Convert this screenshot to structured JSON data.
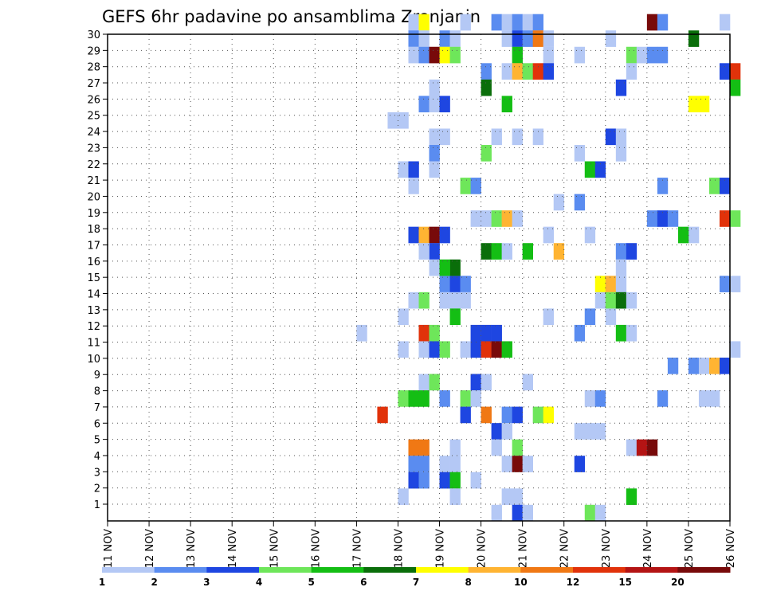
{
  "chart_data": {
    "type": "heatmap",
    "title": "GEFS 6hr padavine po ansamblima Zrenjanin",
    "xlabel": "",
    "ylabel": "",
    "y_ticks": [
      "1",
      "2",
      "3",
      "4",
      "5",
      "6",
      "7",
      "8",
      "9",
      "10",
      "11",
      "12",
      "13",
      "14",
      "15",
      "16",
      "17",
      "18",
      "19",
      "20",
      "21",
      "22",
      "23",
      "24",
      "25",
      "26",
      "27",
      "28",
      "29",
      "30"
    ],
    "x_ticks": [
      "11 NOV",
      "12 NOV",
      "13 NOV",
      "14 NOV",
      "15 NOV",
      "16 NOV",
      "17 NOV",
      "18 NOV",
      "19 NOV",
      "20 NOV",
      "21 NOV",
      "22 NOV",
      "23 NOV",
      "24 NOV",
      "25 NOV",
      "26 NOV"
    ],
    "x_range_days": [
      11,
      26
    ],
    "y_range": [
      0,
      30
    ],
    "step_hours": 6,
    "grid": true,
    "legend": {
      "placement": "bottom",
      "labels": [
        "1",
        "2",
        "3",
        "4",
        "5",
        "6",
        "7",
        "8",
        "10",
        "12",
        "15",
        "20"
      ],
      "colors": [
        "#b4c8f5",
        "#5a8cf0",
        "#1e46e1",
        "#6ee65a",
        "#14be14",
        "#0a6e0a",
        "#ffff00",
        "#ffb432",
        "#f07814",
        "#e1320a",
        "#b41414",
        "#780a0a"
      ]
    },
    "cells_note": "each cell = [day, member, color_level]; day = fractional November date of 6h period start",
    "cells": [
      [
        18.25,
        30,
        1
      ],
      [
        18.5,
        30,
        7
      ],
      [
        19.5,
        30,
        1
      ],
      [
        20.25,
        30,
        2
      ],
      [
        20.5,
        30,
        1
      ],
      [
        20.75,
        30,
        2
      ],
      [
        21,
        30,
        1
      ],
      [
        21.25,
        30,
        2
      ],
      [
        24,
        30,
        12
      ],
      [
        24.25,
        30,
        2
      ],
      [
        25.75,
        30,
        1
      ],
      [
        18.25,
        29,
        2
      ],
      [
        18.5,
        29,
        1
      ],
      [
        19,
        29,
        2
      ],
      [
        19.25,
        29,
        1
      ],
      [
        20.5,
        29,
        1
      ],
      [
        20.75,
        29,
        3
      ],
      [
        21,
        29,
        2
      ],
      [
        21.25,
        29,
        9
      ],
      [
        21.5,
        29,
        1
      ],
      [
        23,
        29,
        1
      ],
      [
        25,
        29,
        6
      ],
      [
        18.25,
        28,
        1
      ],
      [
        18.5,
        28,
        2
      ],
      [
        18.75,
        28,
        12
      ],
      [
        19,
        28,
        7
      ],
      [
        19.25,
        28,
        4
      ],
      [
        20.75,
        28,
        5
      ],
      [
        21.5,
        28,
        1
      ],
      [
        22.25,
        28,
        1
      ],
      [
        23.5,
        28,
        4
      ],
      [
        23.75,
        28,
        1
      ],
      [
        24,
        28,
        2
      ],
      [
        24.25,
        28,
        2
      ],
      [
        20,
        27,
        2
      ],
      [
        20.5,
        27,
        1
      ],
      [
        20.75,
        27,
        8
      ],
      [
        21,
        27,
        4
      ],
      [
        21.25,
        27,
        10
      ],
      [
        21.5,
        27,
        3
      ],
      [
        23.5,
        27,
        1
      ],
      [
        25.75,
        27,
        3
      ],
      [
        26,
        27,
        10
      ],
      [
        18.75,
        26,
        1
      ],
      [
        20,
        26,
        6
      ],
      [
        23.25,
        26,
        3
      ],
      [
        26,
        26,
        5
      ],
      [
        18.5,
        25,
        2
      ],
      [
        18.75,
        25,
        1
      ],
      [
        19,
        25,
        3
      ],
      [
        20.5,
        25,
        5
      ],
      [
        25,
        25,
        7
      ],
      [
        25.25,
        25,
        7
      ],
      [
        17.75,
        24,
        1
      ],
      [
        18,
        24,
        1
      ],
      [
        18.75,
        23,
        1
      ],
      [
        19,
        23,
        1
      ],
      [
        20.25,
        23,
        1
      ],
      [
        20.75,
        23,
        1
      ],
      [
        21.25,
        23,
        1
      ],
      [
        23,
        23,
        3
      ],
      [
        23.25,
        23,
        1
      ],
      [
        18.75,
        22,
        2
      ],
      [
        20,
        22,
        4
      ],
      [
        22.25,
        22,
        1
      ],
      [
        23.25,
        22,
        1
      ],
      [
        18,
        21,
        1
      ],
      [
        18.25,
        21,
        3
      ],
      [
        18.75,
        21,
        1
      ],
      [
        22.5,
        21,
        5
      ],
      [
        22.75,
        21,
        3
      ],
      [
        18.25,
        20,
        1
      ],
      [
        19.5,
        20,
        4
      ],
      [
        19.75,
        20,
        2
      ],
      [
        24.25,
        20,
        2
      ],
      [
        25.5,
        20,
        4
      ],
      [
        25.75,
        20,
        3
      ],
      [
        21.75,
        19,
        1
      ],
      [
        22.25,
        19,
        2
      ],
      [
        19.75,
        18,
        1
      ],
      [
        20,
        18,
        1
      ],
      [
        20.25,
        18,
        4
      ],
      [
        20.5,
        18,
        8
      ],
      [
        20.75,
        18,
        1
      ],
      [
        24,
        18,
        2
      ],
      [
        24.25,
        18,
        3
      ],
      [
        24.5,
        18,
        2
      ],
      [
        25.75,
        18,
        10
      ],
      [
        26,
        18,
        4
      ],
      [
        18.25,
        17,
        3
      ],
      [
        18.5,
        17,
        8
      ],
      [
        18.75,
        17,
        12
      ],
      [
        19,
        17,
        3
      ],
      [
        21.5,
        17,
        1
      ],
      [
        22.5,
        17,
        1
      ],
      [
        25,
        17,
        1
      ],
      [
        24.75,
        17,
        5
      ],
      [
        18.75,
        16,
        3
      ],
      [
        18.5,
        16,
        1
      ],
      [
        20,
        16,
        6
      ],
      [
        20.25,
        16,
        5
      ],
      [
        20.5,
        16,
        1
      ],
      [
        21,
        16,
        5
      ],
      [
        21.75,
        16,
        8
      ],
      [
        23.25,
        16,
        2
      ],
      [
        23.5,
        16,
        3
      ],
      [
        19,
        14,
        2
      ],
      [
        19.25,
        14,
        3
      ],
      [
        19.5,
        14,
        2
      ],
      [
        22.75,
        14,
        7
      ],
      [
        23,
        14,
        8
      ],
      [
        23.25,
        14,
        1
      ],
      [
        25.75,
        14,
        2
      ],
      [
        26,
        14,
        1
      ],
      [
        18.75,
        15,
        1
      ],
      [
        19.25,
        15,
        6
      ],
      [
        19,
        15,
        5
      ],
      [
        23.25,
        15,
        1
      ],
      [
        18.25,
        13,
        1
      ],
      [
        18.5,
        13,
        4
      ],
      [
        19,
        13,
        1
      ],
      [
        19.25,
        13,
        1
      ],
      [
        19.5,
        13,
        1
      ],
      [
        22.75,
        13,
        1
      ],
      [
        23,
        13,
        4
      ],
      [
        23.25,
        13,
        6
      ],
      [
        23.5,
        13,
        1
      ],
      [
        18,
        12,
        1
      ],
      [
        19.25,
        12,
        5
      ],
      [
        21.5,
        12,
        1
      ],
      [
        22.5,
        12,
        2
      ],
      [
        23,
        12,
        1
      ],
      [
        17,
        11,
        1
      ],
      [
        18.5,
        11,
        10
      ],
      [
        18.75,
        11,
        4
      ],
      [
        19.75,
        11,
        3
      ],
      [
        20,
        11,
        3
      ],
      [
        20.25,
        11,
        3
      ],
      [
        22.25,
        11,
        2
      ],
      [
        23.25,
        11,
        5
      ],
      [
        23.5,
        11,
        1
      ],
      [
        18,
        10,
        1
      ],
      [
        18.5,
        10,
        1
      ],
      [
        18.75,
        10,
        3
      ],
      [
        19,
        10,
        4
      ],
      [
        19.5,
        10,
        1
      ],
      [
        19.75,
        10,
        3
      ],
      [
        20,
        10,
        10
      ],
      [
        20.25,
        10,
        12
      ],
      [
        20.5,
        10,
        5
      ],
      [
        26,
        10,
        1
      ],
      [
        24.5,
        9,
        2
      ],
      [
        25,
        9,
        2
      ],
      [
        25.25,
        9,
        1
      ],
      [
        25.5,
        9,
        8
      ],
      [
        25.75,
        9,
        3
      ],
      [
        18.5,
        8,
        1
      ],
      [
        18.75,
        8,
        4
      ],
      [
        19.75,
        8,
        3
      ],
      [
        20,
        8,
        1
      ],
      [
        21,
        8,
        1
      ],
      [
        18,
        7,
        4
      ],
      [
        18.25,
        7,
        5
      ],
      [
        18.5,
        7,
        5
      ],
      [
        19,
        7,
        2
      ],
      [
        19.5,
        7,
        4
      ],
      [
        19.75,
        7,
        1
      ],
      [
        22.5,
        7,
        1
      ],
      [
        22.75,
        7,
        2
      ],
      [
        24.25,
        7,
        2
      ],
      [
        25.25,
        7,
        1
      ],
      [
        25.5,
        7,
        1
      ],
      [
        17.5,
        6,
        10
      ],
      [
        19.5,
        6,
        3
      ],
      [
        20,
        6,
        9
      ],
      [
        20.5,
        6,
        2
      ],
      [
        20.75,
        6,
        3
      ],
      [
        21.25,
        6,
        4
      ],
      [
        21.5,
        6,
        7
      ],
      [
        20.25,
        5,
        3
      ],
      [
        20.5,
        5,
        1
      ],
      [
        22.25,
        5,
        1
      ],
      [
        22.5,
        5,
        1
      ],
      [
        22.75,
        5,
        1
      ],
      [
        18.25,
        4,
        9
      ],
      [
        18.5,
        4,
        9
      ],
      [
        19.25,
        4,
        1
      ],
      [
        20.25,
        4,
        1
      ],
      [
        20.75,
        4,
        4
      ],
      [
        23.5,
        4,
        1
      ],
      [
        23.75,
        4,
        11
      ],
      [
        24,
        4,
        12
      ],
      [
        18.25,
        3,
        2
      ],
      [
        18.5,
        3,
        2
      ],
      [
        19,
        3,
        1
      ],
      [
        19.25,
        3,
        1
      ],
      [
        20.5,
        3,
        1
      ],
      [
        20.75,
        3,
        12
      ],
      [
        21,
        3,
        1
      ],
      [
        22.25,
        3,
        3
      ],
      [
        18.25,
        2,
        3
      ],
      [
        18.5,
        2,
        2
      ],
      [
        19,
        2,
        3
      ],
      [
        19.25,
        2,
        5
      ],
      [
        19.75,
        2,
        1
      ],
      [
        18,
        1,
        1
      ],
      [
        19.25,
        1,
        1
      ],
      [
        20.5,
        1,
        1
      ],
      [
        20.75,
        1,
        1
      ],
      [
        23.5,
        1,
        5
      ],
      [
        20.25,
        0,
        1
      ],
      [
        20.75,
        0,
        3
      ],
      [
        21,
        0,
        1
      ],
      [
        22.5,
        0,
        4
      ],
      [
        22.75,
        0,
        1
      ]
    ]
  }
}
